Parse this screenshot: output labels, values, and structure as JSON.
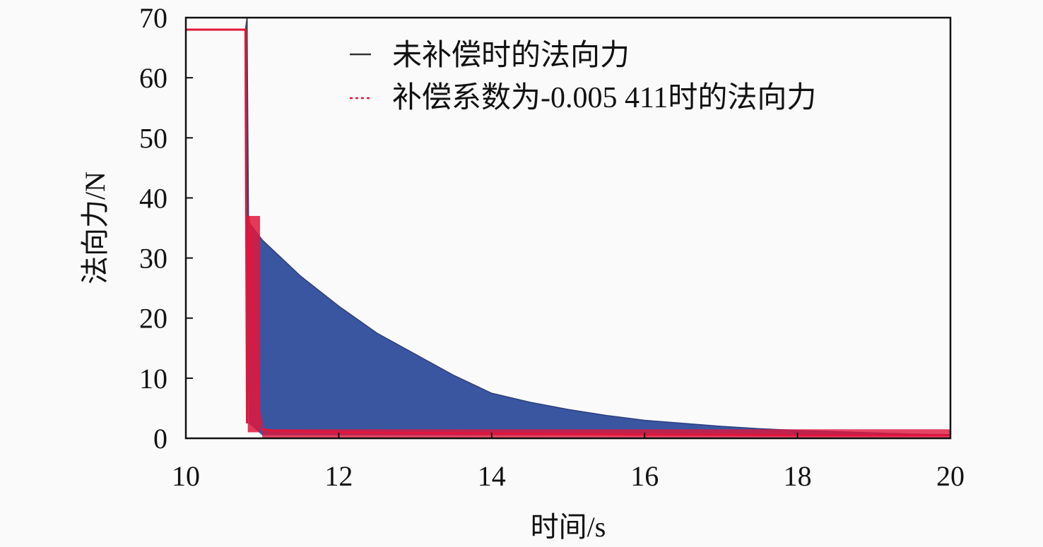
{
  "chart_data": {
    "type": "line",
    "title": "",
    "xlabel": "时间/s",
    "ylabel": "法向力/N",
    "xlim": [
      10,
      20
    ],
    "ylim": [
      0,
      70
    ],
    "xticks": [
      10,
      12,
      14,
      16,
      18,
      20
    ],
    "yticks": [
      0,
      10,
      20,
      30,
      40,
      50,
      60,
      70
    ],
    "grid": false,
    "legend_position": "top-right",
    "series": [
      {
        "name": "未补偿时的法向力",
        "color": "#3a56a0",
        "legend_color": "#333333",
        "style": "solid, oscillating (filled envelope)",
        "x": [
          10,
          10.78,
          10.8,
          10.82,
          11.0,
          11.5,
          12.0,
          12.5,
          13.0,
          13.5,
          14.0,
          14.5,
          15.0,
          15.5,
          16.0,
          16.5,
          17.0,
          17.5,
          18.0,
          18.5,
          19.0,
          19.5,
          20.0
        ],
        "y_upper": [
          68,
          68,
          70,
          36,
          33,
          27,
          22,
          17.5,
          14,
          10.5,
          7.5,
          6,
          4.8,
          3.8,
          3,
          2.5,
          2,
          1.6,
          1.3,
          1.1,
          0.9,
          0.7,
          0.6
        ],
        "y_lower": [
          68,
          68,
          68,
          2.5,
          0.5,
          0.5,
          0.5,
          0.5,
          0.5,
          0.5,
          0.5,
          0.5,
          0.5,
          0.5,
          0.5,
          0.5,
          0.5,
          0.5,
          0.5,
          0.5,
          0.5,
          0.5,
          0.5
        ]
      },
      {
        "name": "补偿系数为-0.005 411时的法向力",
        "color": "#e0163c",
        "style": "dashed",
        "x": [
          10,
          10.78,
          10.8,
          10.82,
          10.85,
          10.9,
          10.95,
          11.0,
          11.2,
          12.0,
          14.0,
          16.0,
          18.0,
          20.0
        ],
        "y": [
          68,
          68,
          2.5,
          37,
          30,
          15,
          5,
          1.5,
          1.2,
          1.0,
          0.8,
          0.6,
          0.5,
          0.5
        ]
      }
    ]
  }
}
